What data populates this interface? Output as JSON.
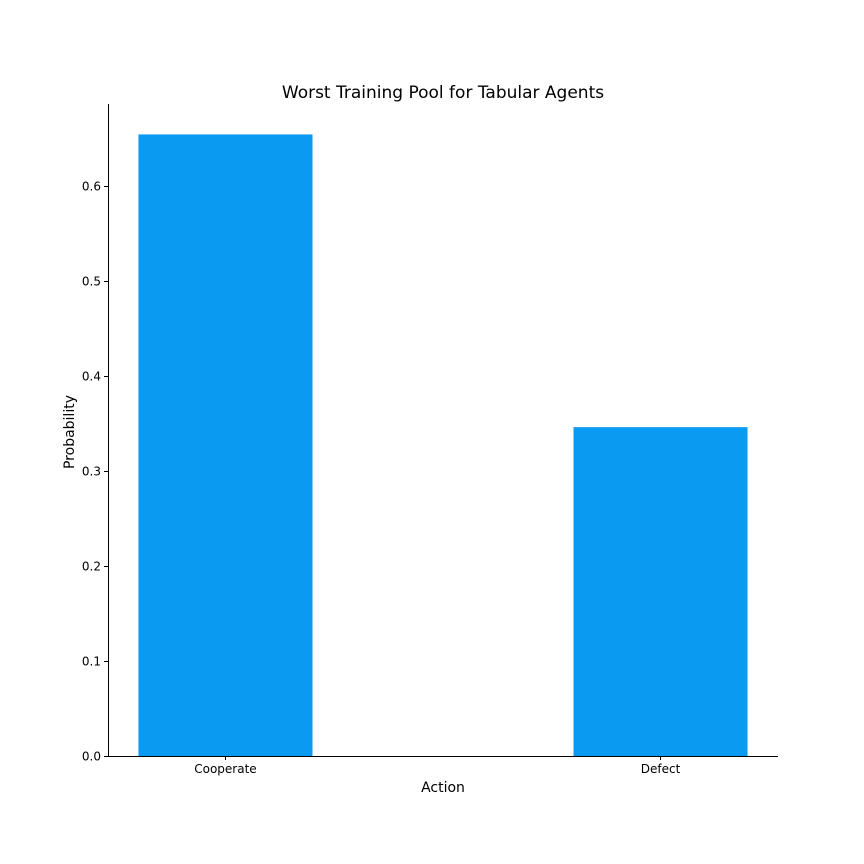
{
  "chart_data": {
    "type": "bar",
    "title": "Worst Training Pool for Tabular Agents",
    "xlabel": "Action",
    "ylabel": "Probability",
    "categories": [
      "Cooperate",
      "Defect"
    ],
    "values": [
      0.654,
      0.346
    ],
    "ylim": [
      0,
      0.686
    ],
    "yticks": [
      0.0,
      0.1,
      0.2,
      0.3,
      0.4,
      0.5,
      0.6
    ],
    "ytick_labels": [
      "0.0",
      "0.1",
      "0.2",
      "0.3",
      "0.4",
      "0.5",
      "0.6"
    ],
    "bar_color": "#0a9af2",
    "grid": false,
    "legend": "none"
  }
}
